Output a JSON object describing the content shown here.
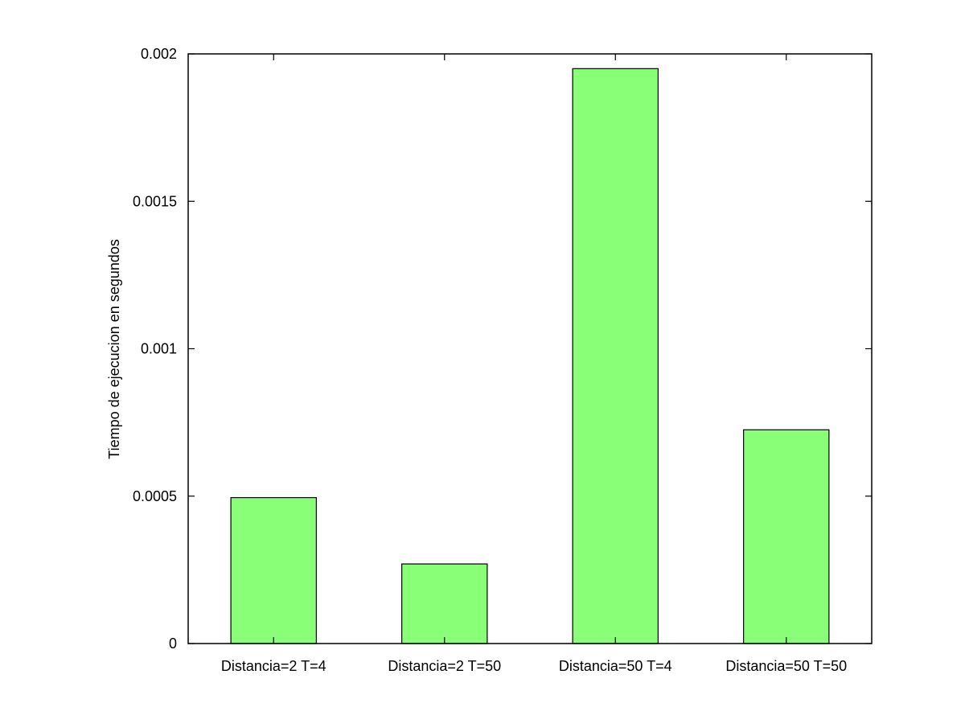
{
  "chart_data": {
    "type": "bar",
    "title": "",
    "xlabel": "",
    "ylabel": "Tiempo de ejecucion en segundos",
    "categories": [
      "Distancia=2 T=4",
      "Distancia=2 T=50",
      "Distancia=50 T=4",
      "Distancia=50 T=50"
    ],
    "values": [
      0.000495,
      0.00027,
      0.00195,
      0.000725
    ],
    "ylim": [
      0,
      0.002
    ],
    "yticks": [
      0,
      0.0005,
      0.001,
      0.0015,
      0.002
    ],
    "ytick_labels": [
      "0",
      "0.0005",
      "0.001",
      "0.0015",
      "0.002"
    ],
    "grid": false,
    "legend": "none",
    "bar_color": "#88ff77",
    "edge_color": "#000000"
  }
}
